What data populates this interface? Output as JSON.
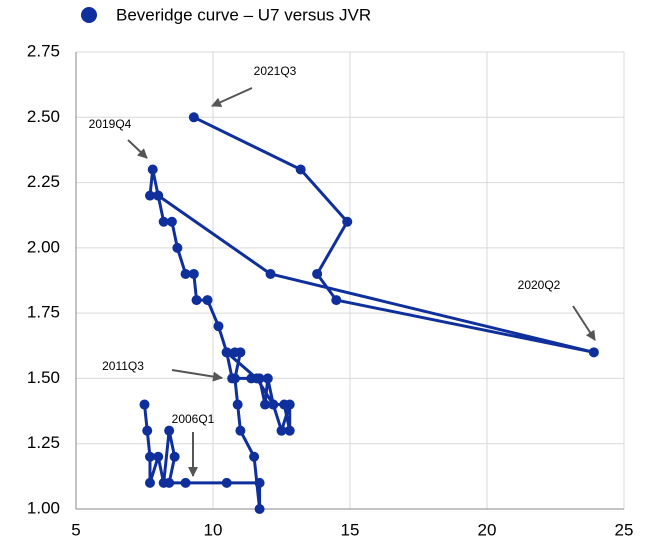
{
  "chart_data": {
    "type": "line",
    "legend_label": "Beveridge curve – U7 versus JVR",
    "series": [
      {
        "name": "Beveridge curve – U7 versus JVR",
        "color": "#0e2f9c",
        "x": [
          7.5,
          7.6,
          7.7,
          7.7,
          8.0,
          8.2,
          8.4,
          8.6,
          8.4,
          9.0,
          10.5,
          11.7,
          11.7,
          11.5,
          11.0,
          10.9,
          10.8,
          11.0,
          10.8,
          10.5,
          10.7,
          11.4,
          11.7,
          11.9,
          12.0,
          12.2,
          12.5,
          12.8,
          12.8,
          12.6,
          12.2,
          11.6,
          10.5,
          10.2,
          9.8,
          9.4,
          9.3,
          9.0,
          8.7,
          8.5,
          8.2,
          8.0,
          7.7,
          7.8,
          8.0,
          12.1,
          23.9,
          14.5,
          13.8,
          14.9,
          13.2,
          9.3
        ],
        "values": [
          1.4,
          1.3,
          1.2,
          1.1,
          1.2,
          1.1,
          1.3,
          1.2,
          1.1,
          1.1,
          1.1,
          1.1,
          1.0,
          1.2,
          1.3,
          1.4,
          1.5,
          1.6,
          1.6,
          1.6,
          1.5,
          1.5,
          1.5,
          1.4,
          1.5,
          1.4,
          1.3,
          1.4,
          1.3,
          1.4,
          1.4,
          1.5,
          1.6,
          1.7,
          1.8,
          1.8,
          1.9,
          1.9,
          2.0,
          2.1,
          2.1,
          2.2,
          2.2,
          2.3,
          2.2,
          1.9,
          1.6,
          1.8,
          1.9,
          2.1,
          2.3,
          2.5
        ]
      }
    ],
    "xlim": [
      5,
      25
    ],
    "xticks": [
      5,
      10,
      15,
      20,
      25
    ],
    "ylim": [
      1.0,
      2.75
    ],
    "yticks": [
      {
        "value": 1.0,
        "label": "1.00"
      },
      {
        "value": 1.25,
        "label": "1.25"
      },
      {
        "value": 1.5,
        "label": "1.50"
      },
      {
        "value": 1.75,
        "label": "1.75"
      },
      {
        "value": 2.0,
        "label": "2.00"
      },
      {
        "value": 2.25,
        "label": "2.25"
      },
      {
        "value": 2.5,
        "label": "2.50"
      },
      {
        "value": 2.75,
        "label": "2.75"
      }
    ],
    "grid": true,
    "annotations": [
      {
        "text": "2021Q3"
      },
      {
        "text": "2019Q4"
      },
      {
        "text": "2020Q2"
      },
      {
        "text": "2011Q3"
      },
      {
        "text": "2006Q1"
      }
    ]
  }
}
